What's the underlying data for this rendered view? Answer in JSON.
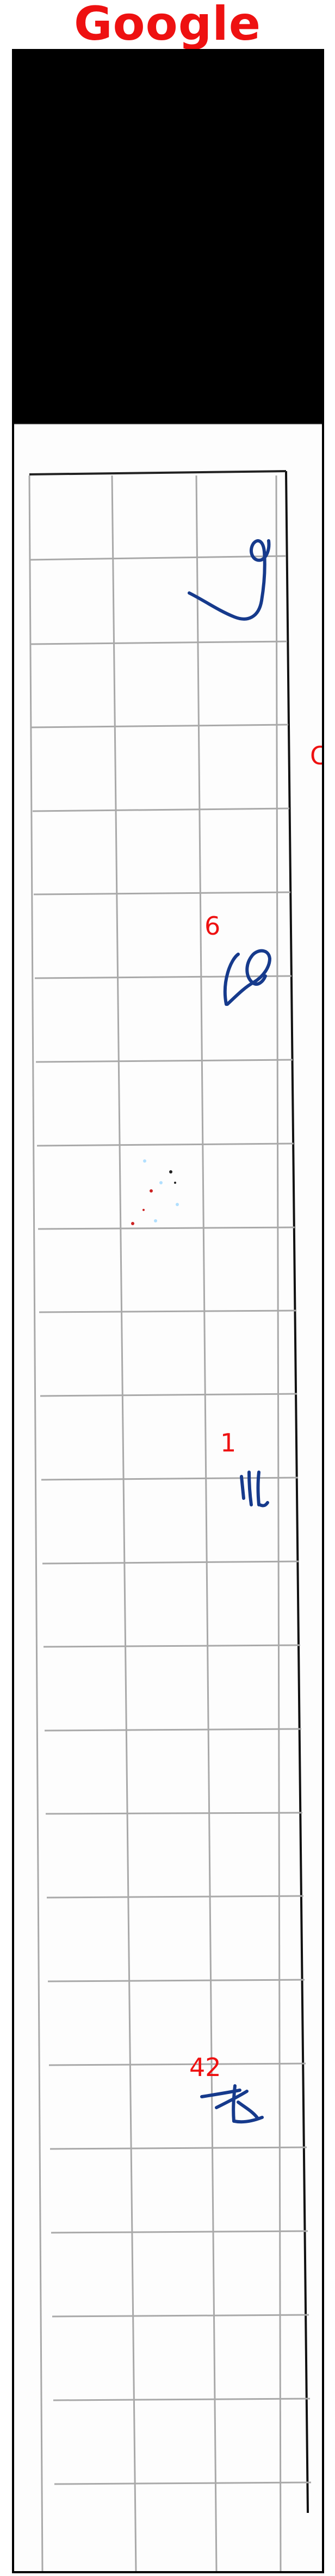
{
  "header": {
    "title": "Google"
  },
  "colors": {
    "title": "#ee1111",
    "frame": "#000000",
    "ink": "#163a8c",
    "grid": "#a9a9a9",
    "annotation": "#ee1111"
  },
  "annotations": [
    "C",
    "6",
    "1",
    "42"
  ],
  "glyphs": [
    "handwritten-9",
    "handwritten-10",
    "handwritten-11",
    "handwritten-12"
  ]
}
